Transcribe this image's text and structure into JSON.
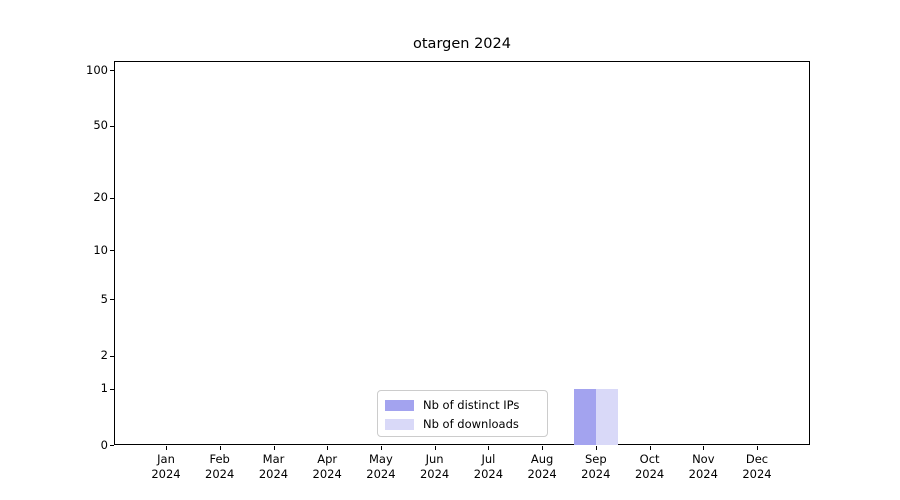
{
  "chart_data": {
    "type": "bar",
    "title": "otargen 2024",
    "categories": [
      "Jan 2024",
      "Feb 2024",
      "Mar 2024",
      "Apr 2024",
      "May 2024",
      "Jun 2024",
      "Jul 2024",
      "Aug 2024",
      "Sep 2024",
      "Oct 2024",
      "Nov 2024",
      "Dec 2024"
    ],
    "series": [
      {
        "name": "Nb of distinct IPs",
        "color": "#a3a3ef",
        "values": [
          0,
          0,
          0,
          0,
          0,
          0,
          0,
          0,
          1,
          0,
          0,
          0
        ]
      },
      {
        "name": "Nb of downloads",
        "color": "#d9d9f8",
        "values": [
          0,
          0,
          0,
          0,
          0,
          0,
          0,
          0,
          1,
          0,
          0,
          0
        ]
      }
    ],
    "xlabel": "",
    "ylabel": "",
    "yscale": "log1p",
    "yticks_major": [
      0,
      1,
      2,
      5,
      10,
      20,
      50,
      100
    ],
    "yticks_minor": [
      3,
      4,
      6,
      7,
      8,
      9,
      30,
      40,
      60,
      70,
      80,
      90
    ],
    "ylim": [
      0,
      112
    ],
    "grid": "horizontal-both-major-and-minor",
    "legend_position": "lower center inside plot"
  }
}
